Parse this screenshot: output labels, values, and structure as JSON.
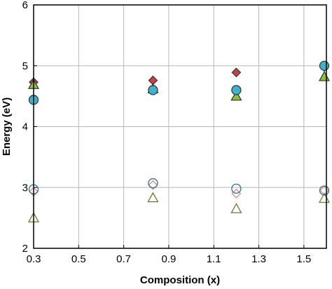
{
  "chart_data": {
    "type": "scatter",
    "xlabel": "Composition (x)",
    "ylabel": "Energy (eV)",
    "xlim": [
      0.3,
      1.6
    ],
    "ylim": [
      2,
      6
    ],
    "xticks": [
      "0.3",
      "0.5",
      "0.7",
      "0.9",
      "1.1",
      "1.3",
      "1.5"
    ],
    "yticks": [
      "2",
      "3",
      "4",
      "5",
      "6"
    ],
    "grid": true,
    "legend": "none",
    "series": [
      {
        "marker": "diamond",
        "filled": true,
        "color": "#c94040",
        "x": [
          0.3,
          0.83,
          1.2,
          1.6
        ],
        "y": [
          4.73,
          4.76,
          4.89,
          4.98
        ]
      },
      {
        "marker": "triangle",
        "filled": true,
        "color": "#8fbf3f",
        "x": [
          0.3,
          0.83,
          1.2,
          1.6
        ],
        "y": [
          4.69,
          4.62,
          4.5,
          4.82
        ]
      },
      {
        "marker": "circle",
        "filled": true,
        "color": "#3fb3c9",
        "x": [
          0.3,
          0.83,
          1.2,
          1.6
        ],
        "y": [
          4.44,
          4.6,
          4.6,
          5.0
        ]
      },
      {
        "marker": "diamond",
        "filled": false,
        "color": "#d98a8a",
        "x": [
          0.3,
          0.83,
          1.2,
          1.6
        ],
        "y": [
          2.93,
          3.04,
          2.9,
          2.95
        ]
      },
      {
        "marker": "circle",
        "filled": false,
        "color": "#2e6f8e",
        "x": [
          0.3,
          0.83,
          1.2,
          1.6
        ],
        "y": [
          2.97,
          3.07,
          2.98,
          2.95
        ]
      },
      {
        "marker": "triangle",
        "filled": false,
        "color": "#5f7f2f",
        "x": [
          0.3,
          0.83,
          1.2,
          1.6
        ],
        "y": [
          2.5,
          2.83,
          2.65,
          2.82
        ]
      }
    ]
  }
}
